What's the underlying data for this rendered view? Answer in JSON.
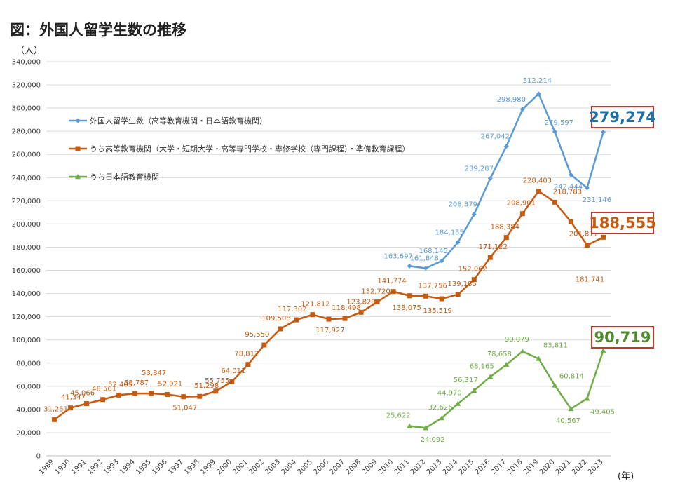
{
  "title": "図：外国人留学生数の推移",
  "chart_data": {
    "type": "line",
    "y_unit": "（人）",
    "x_unit": "(年)",
    "ylim": [
      0,
      340000
    ],
    "y_ticks": [
      0,
      20000,
      40000,
      60000,
      80000,
      100000,
      120000,
      140000,
      160000,
      180000,
      200000,
      220000,
      240000,
      260000,
      280000,
      300000,
      320000,
      340000
    ],
    "y_tick_labels": [
      "0",
      "20,000",
      "40,000",
      "60,000",
      "80,000",
      "100,000",
      "120,000",
      "140,000",
      "160,000",
      "180,000",
      "200,000",
      "220,000",
      "240,000",
      "260,000",
      "280,000",
      "300,000",
      "320,000",
      "340,000"
    ],
    "grid": true,
    "legend_position": "top-left",
    "x": [
      "1989",
      "1990",
      "1991",
      "1992",
      "1993",
      "1994",
      "1995",
      "1996",
      "1997",
      "1998",
      "1999",
      "2000",
      "2001",
      "2002",
      "2003",
      "2004",
      "2005",
      "2006",
      "2007",
      "2008",
      "2009",
      "2010",
      "2011",
      "2012",
      "2013",
      "2014",
      "2015",
      "2016",
      "2017",
      "2018",
      "2019",
      "2020",
      "2021",
      "2022",
      "2023"
    ],
    "series": [
      {
        "name": "外国人留学生数（高等教育機関・日本語教育機関）",
        "color": "#5b9bd5",
        "marker": "diamond",
        "values": [
          null,
          null,
          null,
          null,
          null,
          null,
          null,
          null,
          null,
          null,
          null,
          null,
          null,
          null,
          null,
          null,
          null,
          null,
          null,
          null,
          null,
          null,
          163697,
          161848,
          168145,
          184155,
          208379,
          239287,
          267042,
          298980,
          312214,
          279597,
          242444,
          231146,
          279274
        ],
        "labels": [
          null,
          null,
          null,
          null,
          null,
          null,
          null,
          null,
          null,
          null,
          null,
          null,
          null,
          null,
          null,
          null,
          null,
          null,
          null,
          null,
          null,
          null,
          "163,697",
          "161,848",
          "168,145",
          "184,155",
          "208,379",
          "239,287",
          "267,042",
          "298,980",
          "312,214",
          "279,597",
          "242,444",
          "231,146",
          null
        ]
      },
      {
        "name": "うち高等教育機関（大学・短期大学・高等専門学校・専修学校（専門課程）・準備教育課程）",
        "color": "#c55a11",
        "marker": "square",
        "values": [
          31251,
          41347,
          45066,
          48561,
          52405,
          53787,
          53847,
          52921,
          51047,
          51298,
          55755,
          64011,
          78812,
          95550,
          109508,
          117302,
          121812,
          117927,
          118498,
          123829,
          132720,
          141774,
          138075,
          137756,
          135519,
          139185,
          152062,
          171122,
          188384,
          208901,
          228403,
          218783,
          201877,
          181741,
          188555
        ],
        "labels": [
          "31,251",
          "41,347",
          "45,066",
          "48,561",
          "52,405",
          "53,787",
          "53,847",
          "52,921",
          "51,047",
          "51,298",
          "55,755",
          "64,011",
          "78,812",
          "95,550",
          "109,508",
          "117,302",
          "121,812",
          "117,927",
          "118,498",
          "123,829",
          "132,720",
          "141,774",
          "138,075",
          "137,756",
          "135,519",
          "139,185",
          "152,062",
          "171,122",
          "188,384",
          "208,901",
          "228,403",
          "218,783",
          "201,877",
          "181,741",
          null
        ]
      },
      {
        "name": "うち日本語教育機関",
        "color": "#70ad47",
        "marker": "triangle",
        "values": [
          null,
          null,
          null,
          null,
          null,
          null,
          null,
          null,
          null,
          null,
          null,
          null,
          null,
          null,
          null,
          null,
          null,
          null,
          null,
          null,
          null,
          null,
          25622,
          24092,
          32626,
          44970,
          56317,
          68165,
          78658,
          90079,
          83811,
          60814,
          40567,
          49405,
          90719
        ],
        "labels": [
          null,
          null,
          null,
          null,
          null,
          null,
          null,
          null,
          null,
          null,
          null,
          null,
          null,
          null,
          null,
          null,
          null,
          null,
          null,
          null,
          null,
          null,
          "25,622",
          "24,092",
          "32,626",
          "44,970",
          "56,317",
          "68,165",
          "78,658",
          "90,079",
          "83,811",
          "60,814",
          "40,567",
          "49,405",
          null
        ]
      }
    ],
    "callouts": [
      {
        "series": 0,
        "text": "279,274",
        "color": "#1f6fa8"
      },
      {
        "series": 1,
        "text": "188,555",
        "color": "#c55a11"
      },
      {
        "series": 2,
        "text": "90,719",
        "color": "#4e8a2e"
      }
    ]
  }
}
